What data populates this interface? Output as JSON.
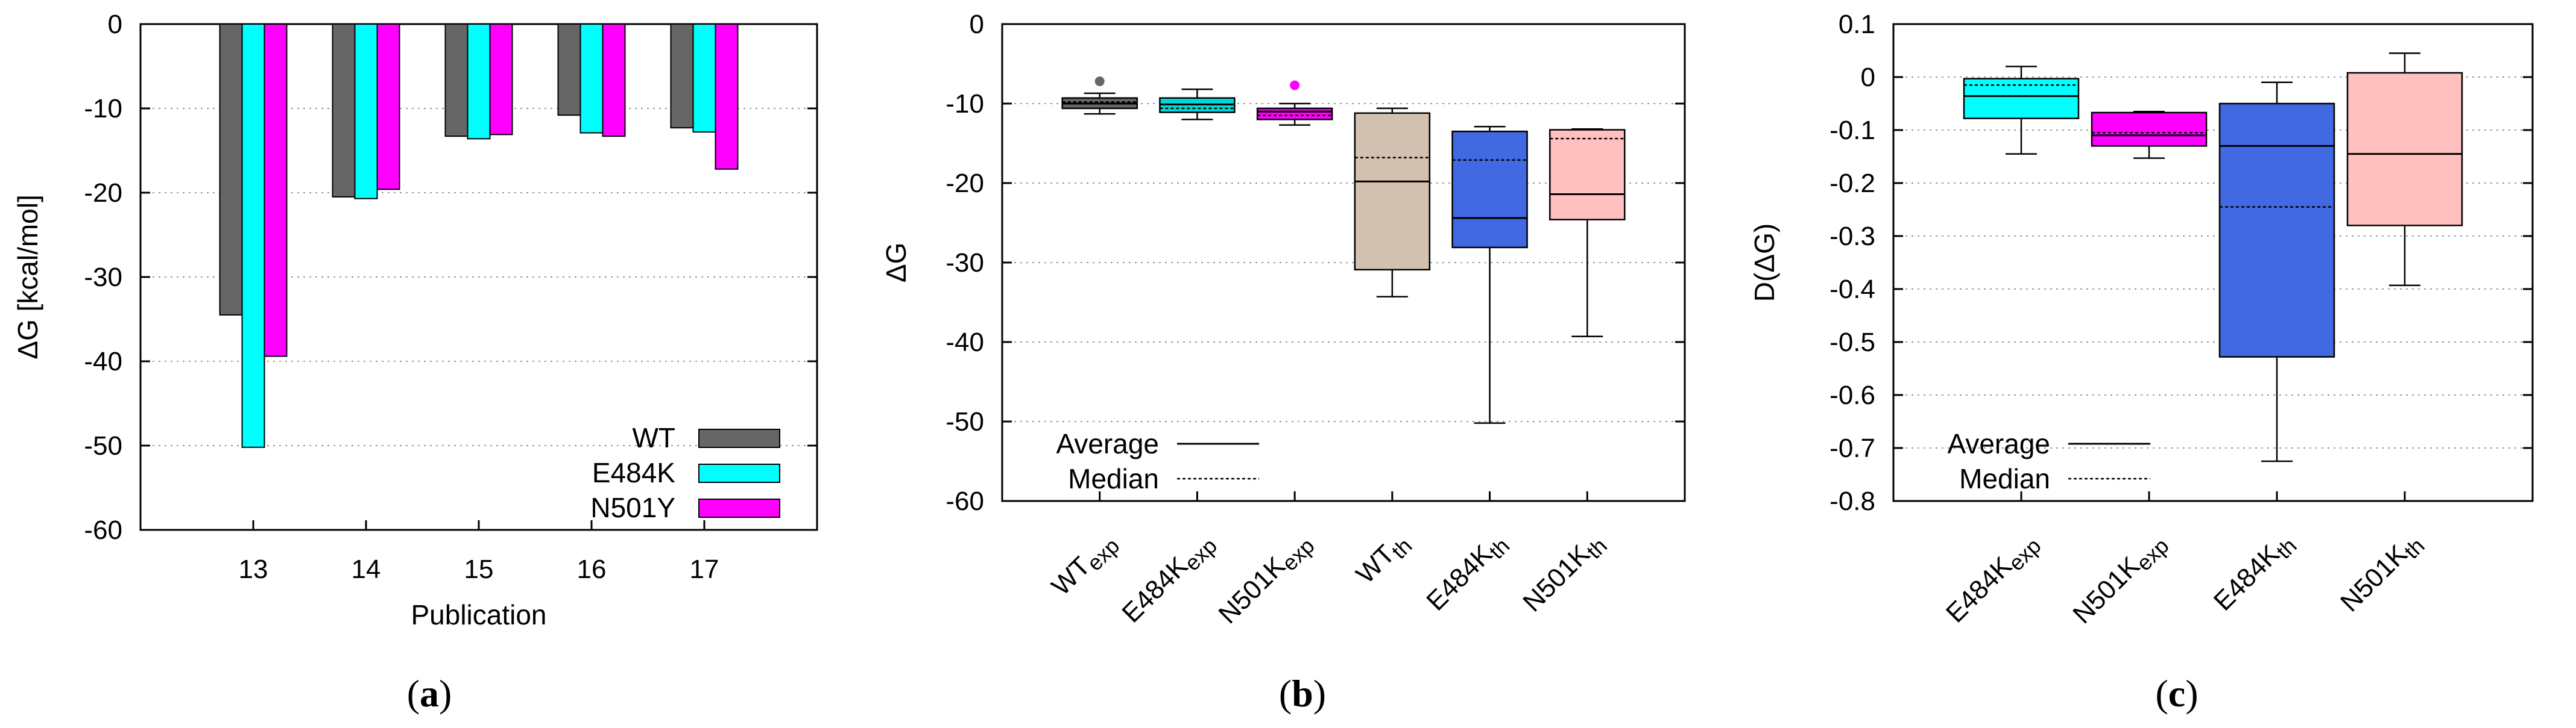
{
  "chart_data": [
    {
      "id": "a",
      "type": "bar",
      "panel_label": "a",
      "xlabel": "Publication",
      "ylabel": "ΔG [kcal/mol]",
      "categories": [
        "13",
        "14",
        "15",
        "16",
        "17"
      ],
      "ylim": [
        -60,
        0
      ],
      "yticks": [
        0,
        -10,
        -20,
        -30,
        -40,
        -50,
        -60
      ],
      "ytick_labels": [
        "0",
        "-10",
        "-20",
        "-30",
        "-40",
        "-50",
        "-60"
      ],
      "grid": "horizontal dotted",
      "legend_position": "bottom-right",
      "series": [
        {
          "name": "WT",
          "color": "#666666",
          "values": [
            -34.5,
            -20.5,
            -13.3,
            -10.8,
            -12.3
          ]
        },
        {
          "name": "E484K",
          "color": "#00ffff",
          "values": [
            -50.2,
            -20.7,
            -13.6,
            -12.9,
            -12.8
          ]
        },
        {
          "name": "N501Y",
          "color": "#ff00ff",
          "values": [
            -39.4,
            -19.6,
            -13.1,
            -13.3,
            -17.2
          ]
        }
      ]
    },
    {
      "id": "b",
      "type": "box",
      "panel_label": "b",
      "ylabel": "ΔG",
      "ylim": [
        -60,
        0
      ],
      "yticks": [
        0,
        -10,
        -20,
        -30,
        -40,
        -50,
        -60
      ],
      "ytick_labels": [
        "0",
        "-10",
        "-20",
        "-30",
        "-40",
        "-50",
        "-60"
      ],
      "grid": "horizontal dotted",
      "legend": {
        "average_label": "Average",
        "median_label": "Median",
        "position": "bottom-left"
      },
      "boxes": [
        {
          "label_main": "WT",
          "label_sub": "exp",
          "color": "#666666",
          "whisker_low": -11.3,
          "q1": -10.6,
          "median": -9.8,
          "average": -10.0,
          "q3": -9.3,
          "whisker_high": -8.7,
          "outliers": [
            -7.2
          ],
          "outlier_color": "#666666"
        },
        {
          "label_main": "E484K",
          "label_sub": "exp",
          "color": "#00d8d8",
          "whisker_low": -12.0,
          "q1": -11.1,
          "median": -10.6,
          "average": -10.1,
          "q3": -9.3,
          "whisker_high": -8.2,
          "outliers": [],
          "outlier_color": "#00d8d8"
        },
        {
          "label_main": "N501K",
          "label_sub": "exp",
          "color": "#ff00ff",
          "whisker_low": -12.7,
          "q1": -12.0,
          "median": -11.5,
          "average": -11.0,
          "q3": -10.6,
          "whisker_high": -10.0,
          "outliers": [
            -7.7
          ],
          "outlier_color": "#ff00ff"
        },
        {
          "label_main": "WT",
          "label_sub": "th",
          "color": "#d2c1b0",
          "whisker_low": -34.3,
          "q1": -30.9,
          "median": -16.8,
          "average": -19.8,
          "q3": -11.2,
          "whisker_high": -10.6,
          "outliers": [],
          "outlier_color": "#d2c1b0"
        },
        {
          "label_main": "E484K",
          "label_sub": "th",
          "color": "#4169e1",
          "whisker_low": -50.2,
          "q1": -28.1,
          "median": -17.1,
          "average": -24.4,
          "q3": -13.5,
          "whisker_high": -12.9,
          "outliers": [],
          "outlier_color": "#4169e1"
        },
        {
          "label_main": "N501K",
          "label_sub": "th",
          "color": "#ffc0bf",
          "whisker_low": -39.3,
          "q1": -24.6,
          "median": -14.4,
          "average": -21.4,
          "q3": -13.3,
          "whisker_high": -13.2,
          "outliers": [],
          "outlier_color": "#ffc0bf"
        }
      ]
    },
    {
      "id": "c",
      "type": "box",
      "panel_label": "c",
      "ylabel": "D(ΔG)",
      "ylim": [
        -0.8,
        0.1
      ],
      "yticks": [
        0.1,
        0,
        -0.1,
        -0.2,
        -0.3,
        -0.4,
        -0.5,
        -0.6,
        -0.7,
        -0.8
      ],
      "ytick_labels": [
        "0.1",
        "0",
        "-0.1",
        "-0.2",
        "-0.3",
        "-0.4",
        "-0.5",
        "-0.6",
        "-0.7",
        "-0.8"
      ],
      "grid": "horizontal dotted",
      "legend": {
        "average_label": "Average",
        "median_label": "Median",
        "position": "bottom-left"
      },
      "boxes": [
        {
          "label_main": "E484K",
          "label_sub": "exp",
          "color": "#00ffff",
          "whisker_low": -0.145,
          "q1": -0.078,
          "median": -0.015,
          "average": -0.036,
          "q3": -0.003,
          "whisker_high": 0.02,
          "outliers": [],
          "outlier_color": "#00ffff"
        },
        {
          "label_main": "N501K",
          "label_sub": "exp",
          "color": "#ff00ff",
          "whisker_low": -0.153,
          "q1": -0.13,
          "median": -0.105,
          "average": -0.11,
          "q3": -0.067,
          "whisker_high": -0.065,
          "outliers": [],
          "outlier_color": "#ff00ff"
        },
        {
          "label_main": "E484K",
          "label_sub": "th",
          "color": "#4169e1",
          "whisker_low": -0.725,
          "q1": -0.528,
          "median": -0.245,
          "average": -0.13,
          "q3": -0.05,
          "whisker_high": -0.01,
          "outliers": [],
          "outlier_color": "#4169e1"
        },
        {
          "label_main": "N501K",
          "label_sub": "th",
          "color": "#ffc0bf",
          "whisker_low": -0.393,
          "q1": -0.28,
          "median": -0.145,
          "average": -0.145,
          "q3": 0.008,
          "whisker_high": 0.045,
          "outliers": [],
          "outlier_color": "#ffc0bf"
        }
      ]
    }
  ]
}
